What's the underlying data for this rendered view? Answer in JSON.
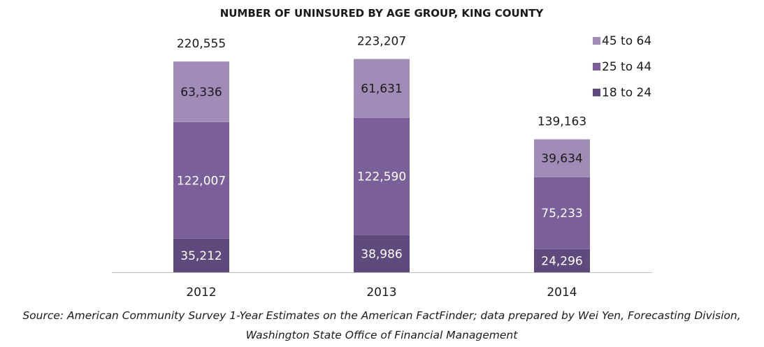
{
  "chart_data": {
    "type": "bar",
    "stacked": true,
    "title": "NUMBER OF UNINSURED BY AGE GROUP, KING COUNTY",
    "categories": [
      "2012",
      "2013",
      "2014"
    ],
    "series": [
      {
        "name": "18 to 24",
        "color": "#5f4a7d",
        "label_color": "#ffffff",
        "values": [
          35212,
          38986,
          24296
        ],
        "labels": [
          "35,212",
          "38,986",
          "24,296"
        ]
      },
      {
        "name": "25 to 44",
        "color": "#7a5f99",
        "label_color": "#ffffff",
        "values": [
          122007,
          122590,
          75233
        ],
        "labels": [
          "122,007",
          "122,590",
          "75,233"
        ]
      },
      {
        "name": "45 to 64",
        "color": "#a08cb6",
        "label_color": "#1a1a1a",
        "values": [
          63336,
          61631,
          39634
        ],
        "labels": [
          "63,336",
          "61,631",
          "39,634"
        ]
      }
    ],
    "totals": [
      220555,
      223207,
      139163
    ],
    "total_labels": [
      "220,555",
      "223,207",
      "139,163"
    ],
    "ylim": [
      0,
      225000
    ],
    "legend_position": "top-right",
    "legend_order": [
      "45 to 64",
      "25 to 44",
      "18 to 24"
    ],
    "grid": false,
    "axis_color": "#bfbfbf"
  },
  "source_lines": [
    "Source: American Community Survey 1-Year Estimates on the American FactFinder; data prepared by Wei Yen, Forecasting Division,",
    "Washington State Office of Financial Management"
  ]
}
